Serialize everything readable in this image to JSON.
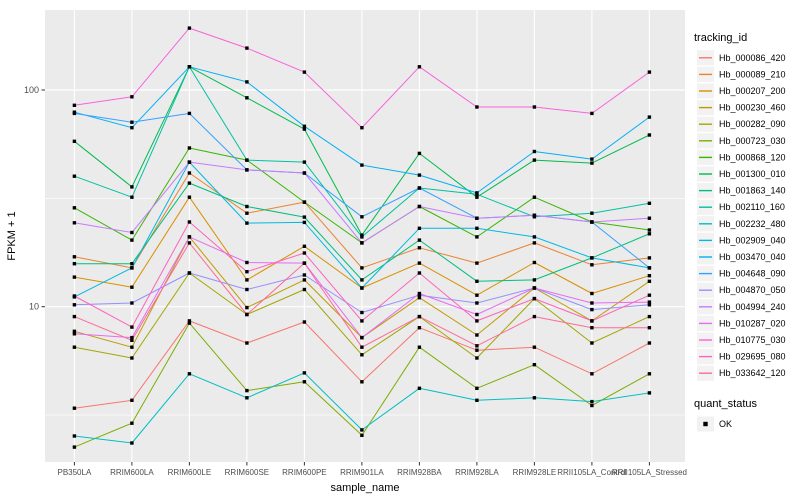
{
  "figure": {
    "background": "#FFFFFF",
    "panel_background": "#EBEBEB",
    "grid_color": "#FFFFFF",
    "tick_color": "#333333",
    "tick_label_color": "#4D4D4D",
    "text_color": "#000000",
    "legend_key_background": "#F2F2F2"
  },
  "chart_data": {
    "type": "line",
    "title": "",
    "xlabel": "sample_name",
    "ylabel": "FPKM + 1",
    "y_scale": "log10",
    "y_major_ticks": [
      100,
      10
    ],
    "y_major_tick_labels": [
      "100",
      "10"
    ],
    "y_minor_gridlines": [
      31.623,
      3.162
    ],
    "ylim": [
      1.9,
      234
    ],
    "grid": true,
    "legend_position": "right",
    "legend_title": "tracking_id",
    "legend2_title": "quant_status",
    "legend2_items": [
      {
        "label": "OK",
        "marker": "filled-square",
        "color": "#000000"
      }
    ],
    "point_marker": "filled-square",
    "point_color": "#000000",
    "categories": [
      "PB350LA",
      "RRIM600LA",
      "RRIM600LE",
      "RRIM600SE",
      "RRIM600PE",
      "RRIM901LA",
      "RRIM928BA",
      "RRIM928LA",
      "RRIM928LE",
      "RRII105LA_Control",
      "RRII105LA_Stressed"
    ],
    "series": [
      {
        "name": "Hb_000086_420",
        "color": "#F8766D",
        "values": [
          3.4,
          3.7,
          8.6,
          6.8,
          8.5,
          4.5,
          8.0,
          6.3,
          6.5,
          4.9,
          6.8
        ]
      },
      {
        "name": "Hb_000089_210",
        "color": "#EA8331",
        "values": [
          17.0,
          15.1,
          41.4,
          27.0,
          30.4,
          15.1,
          18.7,
          15.9,
          19.7,
          15.6,
          16.8
        ]
      },
      {
        "name": "Hb_000207_200",
        "color": "#D89000",
        "values": [
          13.7,
          12.3,
          32.0,
          13.3,
          19.0,
          12.2,
          15.9,
          11.3,
          16.0,
          11.5,
          13.9
        ]
      },
      {
        "name": "Hb_000230_460",
        "color": "#C09B00",
        "values": [
          7.7,
          6.5,
          21.0,
          9.9,
          13.3,
          7.2,
          11.0,
          7.4,
          12.2,
          8.6,
          13.1
        ]
      },
      {
        "name": "Hb_000282_090",
        "color": "#A3A500",
        "values": [
          6.5,
          5.8,
          14.3,
          9.2,
          12.0,
          6.0,
          9.0,
          5.8,
          10.9,
          6.8,
          9.0
        ]
      },
      {
        "name": "Hb_000723_030",
        "color": "#7CAE00",
        "values": [
          2.25,
          2.9,
          8.4,
          4.1,
          4.5,
          2.55,
          6.5,
          4.2,
          5.4,
          3.5,
          4.9
        ]
      },
      {
        "name": "Hb_000868_120",
        "color": "#39B600",
        "values": [
          28.6,
          20.3,
          54.0,
          47.5,
          30.4,
          19.7,
          29.0,
          21.0,
          32.0,
          24.6,
          22.6
        ]
      },
      {
        "name": "Hb_001300_010",
        "color": "#00BB4E",
        "values": [
          58.0,
          35.7,
          128.0,
          92.0,
          66.0,
          21.4,
          51.0,
          32.0,
          47.5,
          46.0,
          62.0
        ]
      },
      {
        "name": "Hb_001863_140",
        "color": "#00BF7D",
        "values": [
          15.8,
          15.8,
          37.2,
          29.0,
          25.9,
          13.3,
          20.3,
          13.1,
          13.3,
          16.8,
          21.7
        ]
      },
      {
        "name": "Hb_002110_160",
        "color": "#00C1A3",
        "values": [
          40.0,
          32.0,
          128.0,
          47.5,
          46.5,
          21.0,
          35.3,
          33.0,
          26.0,
          27.0,
          30.0
        ]
      },
      {
        "name": "Hb_002232_480",
        "color": "#00BFC4",
        "values": [
          2.53,
          2.35,
          4.9,
          3.8,
          4.95,
          2.7,
          4.2,
          3.7,
          3.8,
          3.65,
          4.0
        ]
      },
      {
        "name": "Hb_002909_040",
        "color": "#00BAE0",
        "values": [
          11.1,
          15.1,
          46.5,
          24.3,
          24.5,
          12.2,
          23.0,
          23.0,
          21.0,
          16.8,
          15.1
        ]
      },
      {
        "name": "Hb_003470_040",
        "color": "#00B0F6",
        "values": [
          79.0,
          67.0,
          128.0,
          109.0,
          68.0,
          45.0,
          40.5,
          33.5,
          52.0,
          48.0,
          75.0
        ]
      },
      {
        "name": "Hb_004648_090",
        "color": "#35A2FF",
        "values": [
          78.0,
          71.0,
          78.0,
          42.8,
          41.4,
          26.0,
          35.3,
          25.6,
          26.4,
          24.6,
          15.1
        ]
      },
      {
        "name": "Hb_004870_050",
        "color": "#9590FF",
        "values": [
          10.2,
          10.4,
          14.3,
          12.0,
          14.0,
          9.4,
          11.3,
          10.4,
          12.2,
          9.7,
          10.2
        ]
      },
      {
        "name": "Hb_004994_240",
        "color": "#C77CFF",
        "values": [
          24.4,
          22.0,
          46.5,
          42.8,
          41.4,
          19.7,
          29.0,
          25.6,
          26.4,
          24.6,
          25.6
        ]
      },
      {
        "name": "Hb_010287_020",
        "color": "#E76BF3",
        "values": [
          7.5,
          7.2,
          21.0,
          16.0,
          15.9,
          7.2,
          11.5,
          9.2,
          12.2,
          10.4,
          10.5
        ]
      },
      {
        "name": "Hb_010775_030",
        "color": "#FA62DB",
        "values": [
          85.0,
          93.0,
          193.0,
          156.0,
          121.0,
          67.0,
          128.0,
          83.5,
          83.5,
          78.0,
          121.0
        ]
      },
      {
        "name": "Hb_029695_080",
        "color": "#FF62BC",
        "values": [
          11.2,
          8.05,
          24.6,
          14.5,
          17.7,
          8.6,
          14.3,
          8.6,
          10.9,
          8.6,
          11.3
        ]
      },
      {
        "name": "Hb_033642_120",
        "color": "#FF6A98",
        "values": [
          9.0,
          7.0,
          19.7,
          9.2,
          15.9,
          6.5,
          9.0,
          6.6,
          9.0,
          8.0,
          8.0
        ]
      }
    ]
  }
}
